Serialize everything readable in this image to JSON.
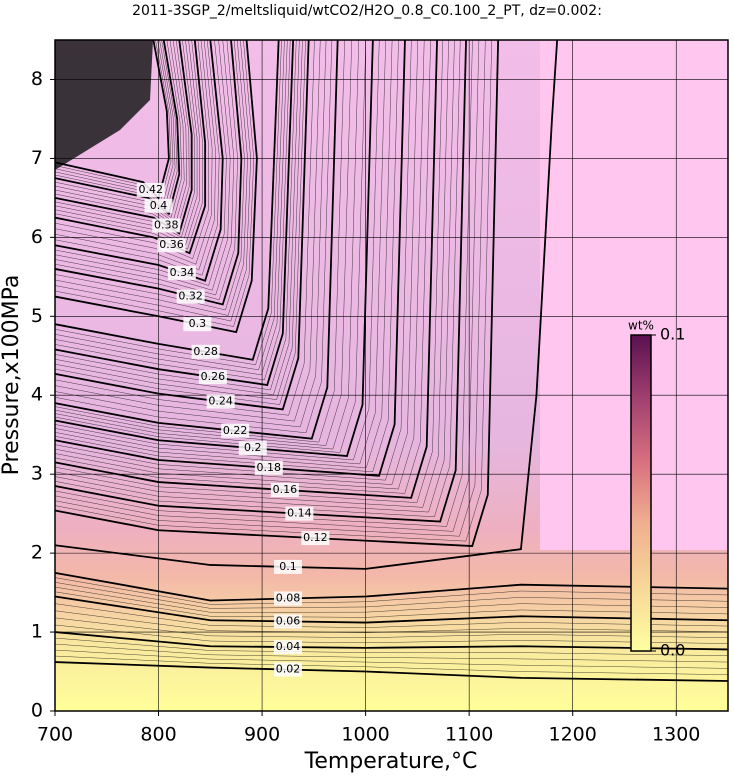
{
  "chart_data": {
    "type": "contour",
    "title": "2011-3SGP_2/meltsliquid/wtCO2/H2O_0.8_C0.100_2_PT, dz=0.002:",
    "xlabel": "Temperature,°C",
    "ylabel": "Pressure,x100MPa",
    "xlim": [
      700,
      1350
    ],
    "xticks": [
      700,
      800,
      900,
      1000,
      1100,
      1200,
      1300
    ],
    "ylim": [
      0,
      8.5
    ],
    "yticks": [
      0,
      1,
      2,
      3,
      4,
      5,
      6,
      7,
      8
    ],
    "grid": true,
    "colorbar": {
      "label": "wt%",
      "lim": [
        0,
        0.1
      ],
      "ticks": [
        {
          "value": 0,
          "label": "0.0"
        },
        0.1
      ]
    },
    "contours": [
      {
        "level": 0.02,
        "points": [
          [
            700,
            0.62
          ],
          [
            850,
            0.55
          ],
          [
            1000,
            0.5
          ],
          [
            1150,
            0.42
          ],
          [
            1350,
            0.38
          ]
        ]
      },
      {
        "level": 0.04,
        "points": [
          [
            700,
            1.0
          ],
          [
            850,
            0.82
          ],
          [
            1000,
            0.8
          ],
          [
            1150,
            0.82
          ],
          [
            1350,
            0.78
          ]
        ]
      },
      {
        "level": 0.06,
        "points": [
          [
            700,
            1.45
          ],
          [
            850,
            1.15
          ],
          [
            1000,
            1.12
          ],
          [
            1150,
            1.2
          ],
          [
            1350,
            1.15
          ]
        ]
      },
      {
        "level": 0.08,
        "points": [
          [
            700,
            1.75
          ],
          [
            850,
            1.4
          ],
          [
            1000,
            1.45
          ],
          [
            1150,
            1.6
          ],
          [
            1350,
            1.55
          ]
        ]
      },
      {
        "level": 0.1,
        "points": [
          [
            700,
            2.1
          ],
          [
            850,
            1.85
          ],
          [
            1000,
            1.8
          ],
          [
            1150,
            2.05
          ],
          [
            1165,
            4
          ],
          [
            1180,
            7.5
          ],
          [
            1185,
            8.5
          ]
        ]
      },
      {
        "level": 0.12,
        "points": [
          [
            700,
            2.54
          ],
          [
            800,
            2.29
          ],
          [
            1103,
            2.09
          ],
          [
            1118,
            2.74
          ],
          [
            1128,
            8.5
          ]
        ]
      },
      {
        "level": 0.14,
        "points": [
          [
            700,
            2.85
          ],
          [
            800,
            2.6
          ],
          [
            1072,
            2.4
          ],
          [
            1087,
            3.05
          ],
          [
            1097,
            8.5
          ]
        ]
      },
      {
        "level": 0.16,
        "points": [
          [
            700,
            3.15
          ],
          [
            800,
            2.9
          ],
          [
            1044,
            2.7
          ],
          [
            1059,
            3.35
          ],
          [
            1069,
            8.5
          ]
        ]
      },
      {
        "level": 0.18,
        "points": [
          [
            700,
            3.43
          ],
          [
            800,
            3.18
          ],
          [
            1013,
            2.98
          ],
          [
            1028,
            3.63
          ],
          [
            1038,
            8.5
          ]
        ]
      },
      {
        "level": 0.2,
        "points": [
          [
            700,
            3.68
          ],
          [
            800,
            3.43
          ],
          [
            982,
            3.23
          ],
          [
            997,
            3.88
          ],
          [
            1007,
            8.5
          ]
        ]
      },
      {
        "level": 0.22,
        "points": [
          [
            700,
            3.9
          ],
          [
            800,
            3.65
          ],
          [
            948,
            3.45
          ],
          [
            963,
            4.1
          ],
          [
            973,
            8.5
          ]
        ]
      },
      {
        "level": 0.24,
        "points": [
          [
            700,
            4.27
          ],
          [
            800,
            4.02
          ],
          [
            920,
            3.82
          ],
          [
            935,
            4.47
          ],
          [
            945,
            8.5
          ]
        ]
      },
      {
        "level": 0.26,
        "points": [
          [
            700,
            4.58
          ],
          [
            800,
            4.33
          ],
          [
            905,
            4.13
          ],
          [
            920,
            4.78
          ],
          [
            930,
            8.5
          ]
        ]
      },
      {
        "level": 0.28,
        "points": [
          [
            700,
            4.9
          ],
          [
            800,
            4.65
          ],
          [
            891,
            4.45
          ],
          [
            906,
            5.1
          ],
          [
            916,
            8.5
          ]
        ]
      },
      {
        "level": 0.3,
        "points": [
          [
            700,
            5.25
          ],
          [
            800,
            5.0
          ],
          [
            875,
            4.8
          ],
          [
            890,
            5.45
          ],
          [
            895,
            7.0
          ],
          [
            885,
            8.5
          ]
        ]
      },
      {
        "level": 0.32,
        "points": [
          [
            700,
            5.6
          ],
          [
            800,
            5.35
          ],
          [
            862,
            5.15
          ],
          [
            877,
            5.8
          ],
          [
            880,
            7.0
          ],
          [
            870,
            8.5
          ]
        ]
      },
      {
        "level": 0.34,
        "points": [
          [
            700,
            5.9
          ],
          [
            800,
            5.65
          ],
          [
            845,
            5.45
          ],
          [
            860,
            6.1
          ],
          [
            862,
            7.0
          ],
          [
            850,
            8.5
          ]
        ]
      },
      {
        "level": 0.36,
        "points": [
          [
            700,
            6.25
          ],
          [
            795,
            6.0
          ],
          [
            830,
            5.8
          ],
          [
            845,
            6.4
          ],
          [
            845,
            7.2
          ],
          [
            835,
            8.5
          ]
        ]
      },
      {
        "level": 0.38,
        "points": [
          [
            700,
            6.5
          ],
          [
            795,
            6.25
          ],
          [
            820,
            6.05
          ],
          [
            832,
            6.6
          ],
          [
            832,
            7.3
          ],
          [
            820,
            8.5
          ]
        ]
      },
      {
        "level": 0.4,
        "points": [
          [
            700,
            6.75
          ],
          [
            790,
            6.5
          ],
          [
            810,
            6.3
          ],
          [
            820,
            6.8
          ],
          [
            818,
            7.5
          ],
          [
            805,
            8.5
          ]
        ]
      },
      {
        "level": 0.42,
        "points": [
          [
            700,
            6.95
          ],
          [
            785,
            6.7
          ],
          [
            800,
            6.5
          ],
          [
            810,
            7.0
          ],
          [
            808,
            7.6
          ],
          [
            795,
            8.5
          ]
        ]
      }
    ]
  }
}
